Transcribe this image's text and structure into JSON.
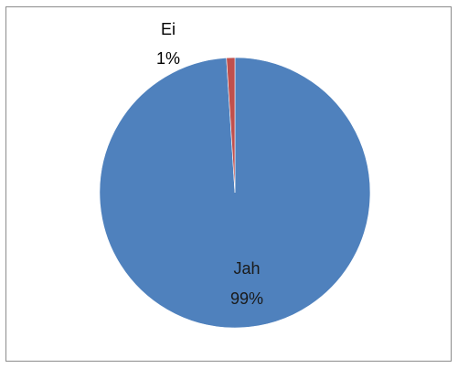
{
  "chart_data": {
    "type": "pie",
    "title": "",
    "slices": [
      {
        "label": "Jah",
        "value": 99,
        "percent_label": "99%",
        "color": "#4f81bd"
      },
      {
        "label": "Ei",
        "value": 1,
        "percent_label": "1%",
        "color": "#c0504d"
      }
    ],
    "legend": "none",
    "start_angle_deg": 0,
    "direction": "counterclockwise"
  }
}
